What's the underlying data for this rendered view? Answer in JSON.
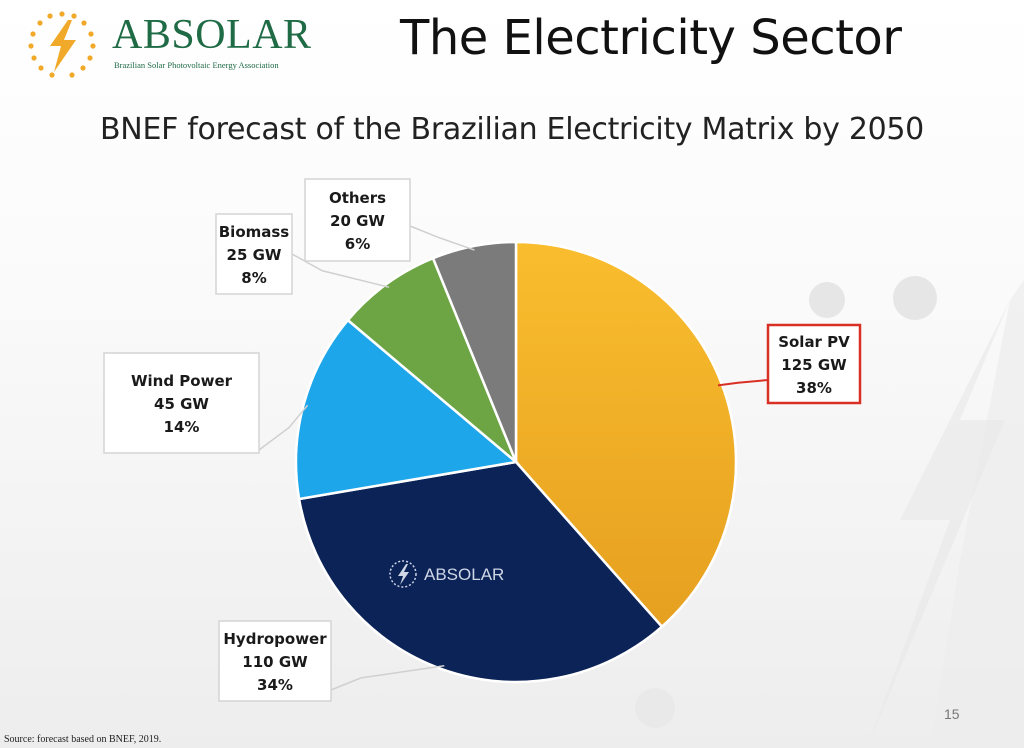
{
  "header": {
    "logo_name": "ABSOLAR",
    "logo_tagline": "Brazilian Solar Photovoltaic Energy Association",
    "title": "The Electricity Sector"
  },
  "subtitle": "BNEF forecast of the Brazilian Electricity Matrix by 2050",
  "chart_data": {
    "type": "pie",
    "title": "BNEF forecast of the Brazilian Electricity Matrix by 2050",
    "unit": "GW",
    "slices": [
      {
        "label": "Solar PV",
        "value": 125,
        "value_label": "125 GW",
        "percent_label": "38%",
        "color": "#f6b52b",
        "highlight": true
      },
      {
        "label": "Hydropower",
        "value": 110,
        "value_label": "110 GW",
        "percent_label": "34%",
        "color": "#0b2357",
        "highlight": false
      },
      {
        "label": "Wind Power",
        "value": 45,
        "value_label": "45 GW",
        "percent_label": "14%",
        "color": "#1ea6ea",
        "highlight": false
      },
      {
        "label": "Biomass",
        "value": 25,
        "value_label": "25 GW",
        "percent_label": "8%",
        "color": "#6da544",
        "highlight": false
      },
      {
        "label": "Others",
        "value": 20,
        "value_label": "20 GW",
        "percent_label": "6%",
        "color": "#7b7b7b",
        "highlight": false
      }
    ],
    "watermark": "ABSOLAR"
  },
  "footer": {
    "page_number": "15",
    "source": "Source: forecast based on BNEF, 2019."
  },
  "colors": {
    "brand_green": "#1f6b45",
    "sun_orange": "#f1a929",
    "highlight_border": "#d93025"
  },
  "icons": {
    "logo": "sun-lightning-icon",
    "watermark": "lightning-icon"
  }
}
